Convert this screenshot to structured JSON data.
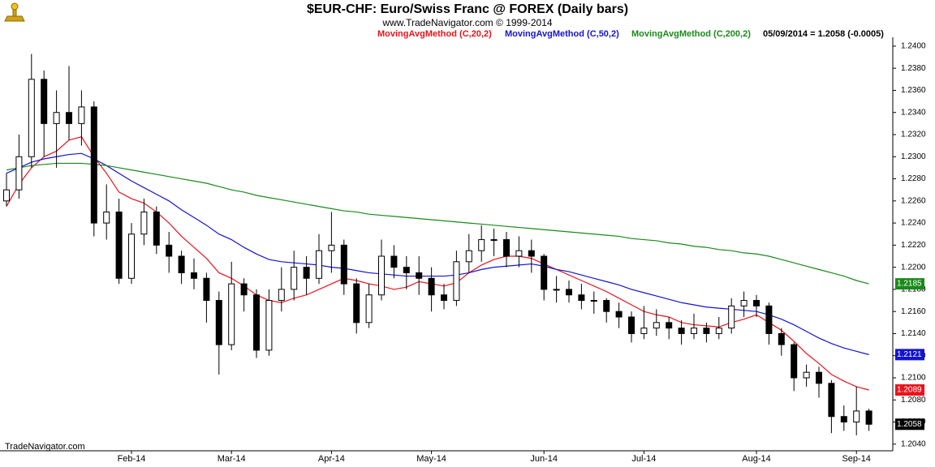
{
  "chart_data": {
    "type": "candlestick",
    "title": "$EUR-CHF:  Euro/Swiss Franc @ FOREX  (Daily bars)",
    "subtitle": "www.TradeNavigator.com © 1999-2014",
    "info": "05/09/2014 = 1.2058 (-0.0005)",
    "footer": "TradeNavigator.com",
    "last_label": "1.2058",
    "categories": [
      null,
      null,
      null,
      null,
      null,
      null,
      null,
      null,
      null,
      null,
      "Feb-14",
      null,
      null,
      null,
      null,
      null,
      null,
      null,
      "Mar-14",
      null,
      null,
      null,
      null,
      null,
      null,
      null,
      "Apr-14",
      null,
      null,
      null,
      null,
      null,
      null,
      null,
      "May-14",
      null,
      null,
      null,
      null,
      null,
      null,
      null,
      null,
      "Jun-14",
      null,
      null,
      null,
      null,
      null,
      null,
      null,
      "Jul-14",
      null,
      null,
      null,
      null,
      null,
      null,
      null,
      null,
      "Aug-14",
      null,
      null,
      null,
      null,
      null,
      null,
      null,
      "Sep-14",
      null
    ],
    "open": [
      1.226,
      1.227,
      1.23,
      1.237,
      1.233,
      1.234,
      1.233,
      1.2345,
      1.224,
      1.225,
      1.219,
      1.223,
      1.225,
      1.222,
      1.221,
      1.2195,
      1.219,
      1.217,
      1.213,
      1.2185,
      1.2175,
      1.2125,
      1.217,
      1.218,
      1.22,
      1.219,
      1.2215,
      1.222,
      1.2185,
      1.215,
      1.2175,
      1.221,
      1.22,
      1.2195,
      1.219,
      1.2175,
      1.217,
      1.2205,
      1.2215,
      1.2225,
      1.2225,
      1.221,
      1.2215,
      1.221,
      1.218,
      1.218,
      1.2175,
      1.217,
      1.217,
      1.216,
      1.2155,
      1.214,
      1.2145,
      1.215,
      1.2145,
      1.214,
      1.2145,
      1.214,
      1.2145,
      1.2165,
      1.217,
      1.2165,
      1.214,
      1.213,
      1.21,
      1.2105,
      1.2095,
      1.2065,
      1.206,
      1.207
    ],
    "high": [
      1.2285,
      1.232,
      1.2393,
      1.2378,
      1.236,
      1.2382,
      1.236,
      1.235,
      1.2275,
      1.2262,
      1.224,
      1.2262,
      1.2255,
      1.2232,
      1.2215,
      1.2208,
      1.2195,
      1.2178,
      1.2205,
      1.219,
      1.218,
      1.218,
      1.22,
      1.2215,
      1.221,
      1.223,
      1.225,
      1.2225,
      1.219,
      1.2185,
      1.2225,
      1.222,
      1.221,
      1.221,
      1.22,
      1.2185,
      1.2215,
      1.223,
      1.2238,
      1.2235,
      1.2232,
      1.2228,
      1.2225,
      1.2212,
      1.2192,
      1.2188,
      1.2185,
      1.2178,
      1.2172,
      1.2168,
      1.216,
      1.2165,
      1.2162,
      1.2155,
      1.2152,
      1.2158,
      1.215,
      1.2155,
      1.2172,
      1.2178,
      1.2175,
      1.2168,
      1.2145,
      1.2132,
      1.2112,
      1.211,
      1.2098,
      1.2075,
      1.2092,
      1.2072
    ],
    "low": [
      1.2255,
      1.2262,
      1.229,
      1.23,
      1.229,
      1.2315,
      1.231,
      1.2228,
      1.2225,
      1.2185,
      1.2185,
      1.222,
      1.2212,
      1.2195,
      1.2185,
      1.218,
      1.215,
      1.2103,
      1.2125,
      1.216,
      1.2118,
      1.212,
      1.216,
      1.217,
      1.2175,
      1.2185,
      1.2195,
      1.2175,
      1.214,
      1.2145,
      1.217,
      1.219,
      1.218,
      1.2175,
      1.216,
      1.2162,
      1.2165,
      1.2195,
      1.2205,
      1.221,
      1.22,
      1.22,
      1.2195,
      1.217,
      1.2168,
      1.2168,
      1.2162,
      1.2158,
      1.215,
      1.2145,
      1.2132,
      1.2135,
      1.2138,
      1.2135,
      1.213,
      1.2135,
      1.2132,
      1.2135,
      1.214,
      1.2155,
      1.2155,
      1.213,
      1.212,
      1.2088,
      1.2092,
      1.2082,
      1.205,
      1.2052,
      1.2048,
      1.2052
    ],
    "close": [
      1.227,
      1.23,
      1.237,
      1.233,
      1.234,
      1.233,
      1.2345,
      1.224,
      1.225,
      1.219,
      1.223,
      1.225,
      1.222,
      1.221,
      1.2195,
      1.219,
      1.217,
      1.213,
      1.2185,
      1.2175,
      1.2125,
      1.217,
      1.218,
      1.22,
      1.219,
      1.2215,
      1.222,
      1.2185,
      1.215,
      1.2175,
      1.221,
      1.22,
      1.2195,
      1.219,
      1.2175,
      1.217,
      1.2205,
      1.2215,
      1.2225,
      1.2225,
      1.221,
      1.2215,
      1.221,
      1.218,
      1.218,
      1.2175,
      1.217,
      1.217,
      1.216,
      1.2155,
      1.214,
      1.2145,
      1.215,
      1.2145,
      1.214,
      1.2145,
      1.214,
      1.2145,
      1.2165,
      1.217,
      1.2165,
      1.214,
      1.213,
      1.21,
      1.2105,
      1.2095,
      1.2065,
      1.206,
      1.207,
      1.2058
    ],
    "series": [
      {
        "name": "MovingAvgMethod (C,20,2)",
        "color": "#e8141c",
        "last_label": "1.2089",
        "values": [
          1.2255,
          1.2275,
          1.229,
          1.23,
          1.2305,
          1.2315,
          1.2318,
          1.23,
          1.2285,
          1.2268,
          1.2262,
          1.2258,
          1.225,
          1.224,
          1.2228,
          1.2218,
          1.2208,
          1.2195,
          1.219,
          1.2183,
          1.2175,
          1.217,
          1.2168,
          1.2172,
          1.2175,
          1.218,
          1.2185,
          1.219,
          1.2188,
          1.2185,
          1.2183,
          1.218,
          1.2182,
          1.2187,
          1.2185,
          1.2183,
          1.2186,
          1.2195,
          1.2202,
          1.2207,
          1.221,
          1.221,
          1.2208,
          1.2203,
          1.2198,
          1.2193,
          1.2188,
          1.2183,
          1.2178,
          1.2172,
          1.2166,
          1.216,
          1.2157,
          1.2155,
          1.215,
          1.2148,
          1.2147,
          1.2146,
          1.215,
          1.2153,
          1.2157,
          1.215,
          1.2143,
          1.2133,
          1.2122,
          1.2113,
          1.2103,
          1.2097,
          1.2092,
          1.2089
        ]
      },
      {
        "name": "MovingAvgMethod (C,50,2)",
        "color": "#1414d2",
        "last_label": "1.2121",
        "values": [
          1.2285,
          1.229,
          1.2295,
          1.2298,
          1.23,
          1.2302,
          1.2303,
          1.2298,
          1.2292,
          1.2285,
          1.2278,
          1.2272,
          1.2266,
          1.226,
          1.2252,
          1.2245,
          1.2238,
          1.223,
          1.2225,
          1.2218,
          1.2212,
          1.2207,
          1.2205,
          1.2204,
          1.2203,
          1.2202,
          1.22,
          1.2199,
          1.2197,
          1.2195,
          1.2194,
          1.2193,
          1.2192,
          1.2192,
          1.2192,
          1.2192,
          1.2193,
          1.2195,
          1.2198,
          1.22,
          1.2201,
          1.2202,
          1.2203,
          1.2201,
          1.2198,
          1.2196,
          1.2193,
          1.219,
          1.2187,
          1.2184,
          1.218,
          1.2177,
          1.2174,
          1.2171,
          1.2168,
          1.2166,
          1.2164,
          1.2163,
          1.2162,
          1.2161,
          1.216,
          1.2157,
          1.2153,
          1.2148,
          1.2142,
          1.2136,
          1.2131,
          1.2127,
          1.2124,
          1.2121
        ]
      },
      {
        "name": "MovingAvgMethod (C,200,2)",
        "color": "#1a8a1a",
        "last_label": "1.2185",
        "values": [
          1.2288,
          1.229,
          1.2292,
          1.2293,
          1.2294,
          1.2294,
          1.2294,
          1.2293,
          1.2292,
          1.229,
          1.2288,
          1.2286,
          1.2284,
          1.2282,
          1.228,
          1.2278,
          1.2276,
          1.2273,
          1.227,
          1.2268,
          1.2265,
          1.2263,
          1.2261,
          1.2259,
          1.2257,
          1.2255,
          1.2253,
          1.2251,
          1.225,
          1.2248,
          1.2247,
          1.2246,
          1.2245,
          1.2244,
          1.2243,
          1.2242,
          1.2241,
          1.224,
          1.2239,
          1.2238,
          1.2237,
          1.2236,
          1.2235,
          1.2234,
          1.2233,
          1.2232,
          1.2231,
          1.223,
          1.2229,
          1.2228,
          1.2226,
          1.2225,
          1.2224,
          1.2222,
          1.2221,
          1.2219,
          1.2218,
          1.2216,
          1.2215,
          1.2213,
          1.2212,
          1.221,
          1.2207,
          1.2204,
          1.2201,
          1.2198,
          1.2195,
          1.2192,
          1.2188,
          1.2185
        ]
      }
    ],
    "ylim": [
      1.2034,
      1.2408
    ],
    "yticks": [
      {
        "value": 1.204,
        "label": "1.2040"
      },
      {
        "value": 1.206,
        "label": "1.2060"
      },
      {
        "value": 1.208,
        "label": "1.2080"
      },
      {
        "value": 1.21,
        "label": "1.2100"
      },
      {
        "value": 1.212,
        "label": "1.2120"
      },
      {
        "value": 1.214,
        "label": "1.2140"
      },
      {
        "value": 1.216,
        "label": "1.2160"
      },
      {
        "value": 1.218,
        "label": "1.2180"
      },
      {
        "value": 1.22,
        "label": "1.2200"
      },
      {
        "value": 1.222,
        "label": "1.2220"
      },
      {
        "value": 1.224,
        "label": "1.2240"
      },
      {
        "value": 1.226,
        "label": "1.2260"
      },
      {
        "value": 1.228,
        "label": "1.2280"
      },
      {
        "value": 1.23,
        "label": "1.2300"
      },
      {
        "value": 1.232,
        "label": "1.2320"
      },
      {
        "value": 1.234,
        "label": "1.2340"
      },
      {
        "value": 1.236,
        "label": "1.2360"
      },
      {
        "value": 1.238,
        "label": "1.2380"
      },
      {
        "value": 1.24,
        "label": "1.2400"
      }
    ],
    "grid": false
  }
}
